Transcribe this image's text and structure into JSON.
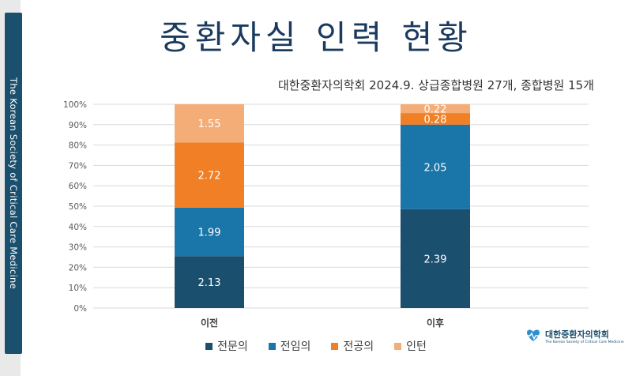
{
  "slide": {
    "title": "중환자실 인력 현황",
    "subtitle": "대한중환자의학회 2024.9. 상급종합병원 27개, 종합병원 15개",
    "side_text": "The Korean Society of Critical Care Medicine",
    "logo_text": "대한중환자의학회",
    "logo_subtext": "The Korean Society of Critical Care Medicine",
    "logo_icon": "society-logo-icon"
  },
  "chart_data": {
    "type": "bar",
    "stacked": "percent",
    "categories": [
      "이전",
      "이후"
    ],
    "series": [
      {
        "name": "전문의",
        "color": "#1b4f6e",
        "values": [
          2.13,
          2.39
        ],
        "shares": [
          0.255,
          0.485
        ]
      },
      {
        "name": "전임의",
        "color": "#1a75a8",
        "values": [
          1.99,
          2.05
        ],
        "shares": [
          0.238,
          0.415
        ]
      },
      {
        "name": "전공의",
        "color": "#f07f26",
        "values": [
          2.72,
          0.28
        ],
        "shares": [
          0.32,
          0.057
        ]
      },
      {
        "name": "인턴",
        "color": "#f5ad77",
        "values": [
          1.55,
          0.22
        ],
        "shares": [
          0.187,
          0.043
        ]
      }
    ],
    "yticks": [
      "0%",
      "10%",
      "20%",
      "30%",
      "40%",
      "50%",
      "60%",
      "70%",
      "80%",
      "90%",
      "100%"
    ],
    "ylim": [
      0,
      100
    ],
    "grid": true,
    "legend": "bottom"
  }
}
